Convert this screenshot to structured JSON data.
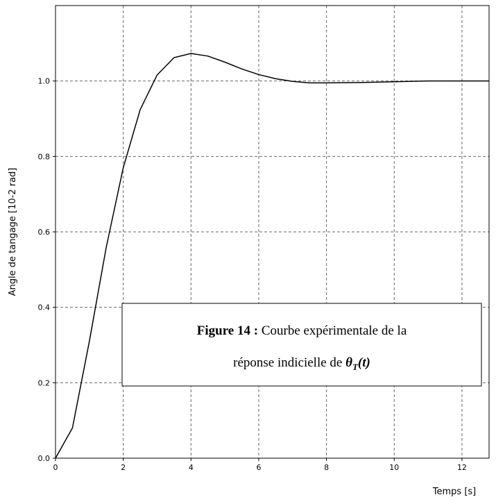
{
  "chart_data": {
    "type": "line",
    "ylabel": "Angle de tangage [10-2 rad]",
    "xlabel": "Temps [s]",
    "x": [
      0,
      0.5,
      1,
      1.5,
      2,
      2.5,
      3,
      3.5,
      4,
      4.5,
      5,
      5.5,
      6,
      6.5,
      7,
      7.5,
      8,
      9,
      10,
      11,
      12,
      12.8
    ],
    "series": [
      {
        "name": "θT(t)",
        "color": "#000000",
        "values": [
          0,
          0.08,
          0.31,
          0.56,
          0.77,
          0.924,
          1.016,
          1.062,
          1.073,
          1.066,
          1.05,
          1.032,
          1.017,
          1.006,
          0.999,
          0.995,
          0.995,
          0.996,
          0.998,
          1.0,
          1.0,
          1.0
        ]
      }
    ],
    "xlim": [
      0,
      12.8
    ],
    "ylim": [
      0,
      1.2
    ],
    "xticks": [
      0,
      2,
      4,
      6,
      8,
      10,
      12
    ],
    "yticks": [
      {
        "value": 0,
        "label": "0.0"
      },
      0.2,
      0.4,
      0.6,
      0.8,
      {
        "value": 1,
        "label": "1.0"
      }
    ],
    "grid": true,
    "annotation": {
      "label": "Figure 14 :",
      "line1": "Courbe expérimentale de la",
      "line2": "réponse indicielle de",
      "symbol": "θ",
      "subscript": "T",
      "argument": "(t)"
    }
  }
}
